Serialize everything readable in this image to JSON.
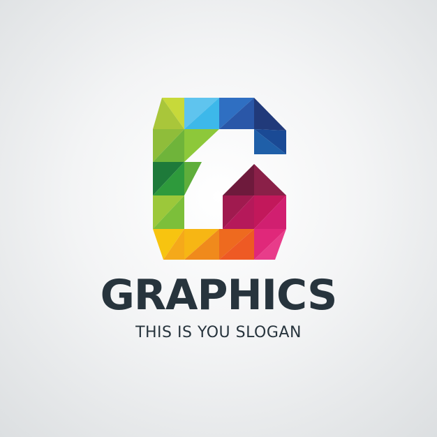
{
  "logo": {
    "mark_icon": "letter-g-polygon-icon",
    "brand_name": "GRAPHICS",
    "slogan": "THIS IS YOU SLOGAN"
  },
  "colors": {
    "background": "#eef0f1",
    "text": "#27343d",
    "lime": "#a9c63a",
    "green": "#5fae3b",
    "dark_green": "#1e7a3a",
    "yellow": "#f7c410",
    "orange": "#f08a1c",
    "red_orange": "#ee5a24",
    "pink": "#e0287a",
    "magenta": "#c2185b",
    "maroon": "#7c1d44",
    "light_blue": "#3db8ea",
    "blue": "#2f8fd6",
    "navy": "#213a7a",
    "dark_navy": "#1a2d6b"
  }
}
